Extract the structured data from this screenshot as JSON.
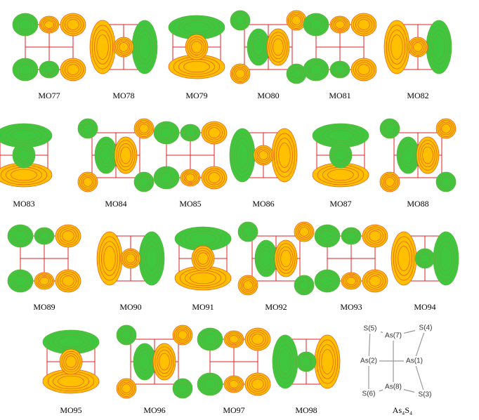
{
  "panels": [
    {
      "label": "MO77"
    },
    {
      "label": "MO78"
    },
    {
      "label": "MO79"
    },
    {
      "label": "MO80"
    },
    {
      "label": "MO81"
    },
    {
      "label": "MO82"
    },
    {
      "label": "MO83"
    },
    {
      "label": "MO84"
    },
    {
      "label": "MO85"
    },
    {
      "label": "MO86"
    },
    {
      "label": "MO87"
    },
    {
      "label": "MO88"
    },
    {
      "label": "MO89"
    },
    {
      "label": "MO90"
    },
    {
      "label": "MO91"
    },
    {
      "label": "MO92"
    },
    {
      "label": "MO93"
    },
    {
      "label": "MO94"
    },
    {
      "label": "MO95"
    },
    {
      "label": "MO96"
    },
    {
      "label": "MO97"
    },
    {
      "label": "MO98"
    }
  ],
  "structure": {
    "title": "As₄S₄",
    "atoms": [
      "S(5)",
      "As(7)",
      "S(4)",
      "As(2)",
      "As(1)",
      "S(6)",
      "As(8)",
      "S(3)"
    ]
  }
}
